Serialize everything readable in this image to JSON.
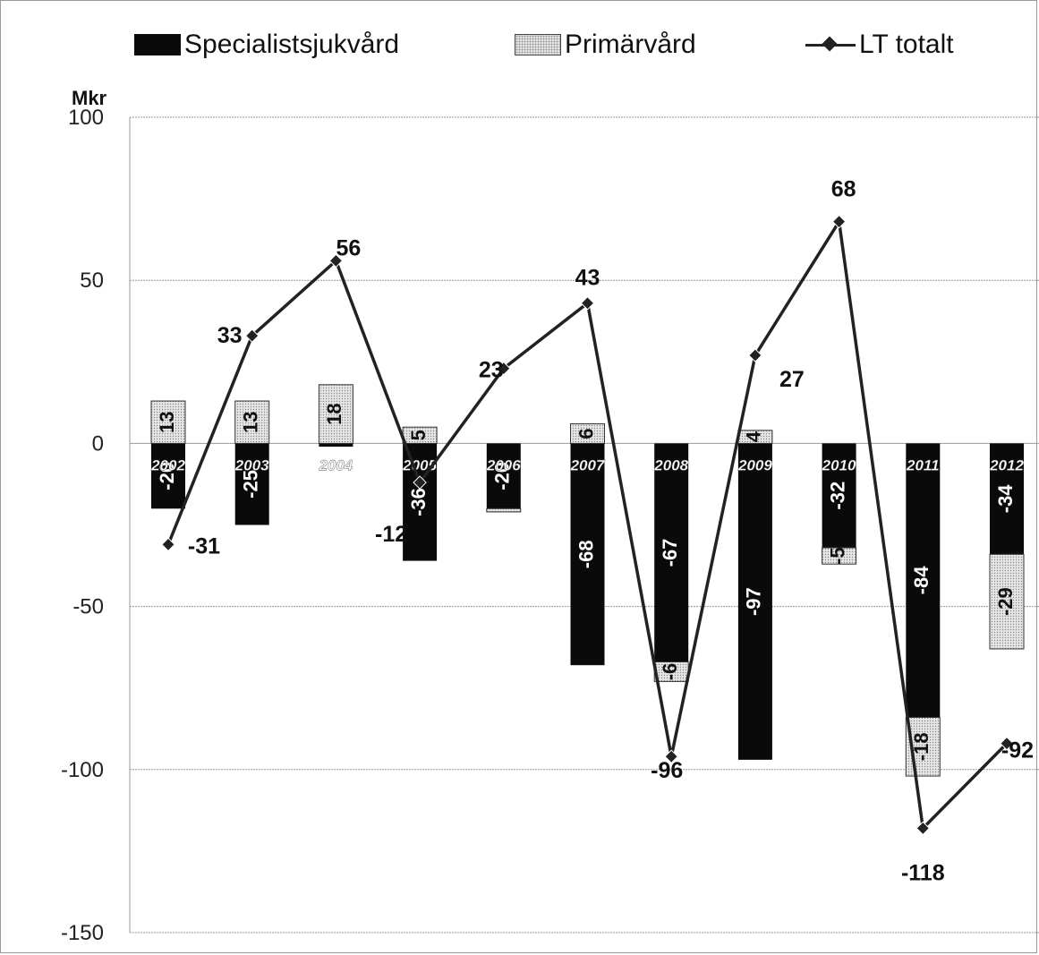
{
  "legend": {
    "specialist": "Specialistsjukvård",
    "primary": "Primärvård",
    "total": "LT totalt"
  },
  "unit_label": "Mkr",
  "colors": {
    "specialist": "#0a0a0a",
    "primary": "#e4e4e4",
    "line": "#222222"
  },
  "chart_data": {
    "type": "bar",
    "stacked": true,
    "categories": [
      "2002",
      "2003",
      "2004",
      "2005",
      "2006",
      "2007",
      "2008",
      "2009",
      "2010",
      "2011",
      "2012"
    ],
    "series": [
      {
        "name": "Specialistsjukvård",
        "type": "bar",
        "values": [
          -20,
          -25,
          -1,
          -36,
          -20,
          -68,
          -67,
          -97,
          -32,
          -84,
          -34
        ]
      },
      {
        "name": "Primärvård",
        "type": "bar",
        "values": [
          13,
          13,
          18,
          5,
          -1,
          6,
          -6,
          4,
          -5,
          -18,
          -29
        ]
      },
      {
        "name": "LT totalt",
        "type": "line",
        "values": [
          -31,
          33,
          56,
          -12,
          23,
          43,
          -96,
          27,
          68,
          -118,
          -92
        ]
      }
    ],
    "ylabel": "Mkr",
    "ylim": [
      -150,
      100
    ],
    "yticks": [
      "100",
      "50",
      "0",
      "-50",
      "-100",
      "-150"
    ],
    "grid": true,
    "legend_position": "top"
  }
}
